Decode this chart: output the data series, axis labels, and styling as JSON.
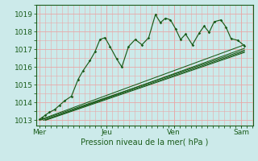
{
  "background_color": "#cceaea",
  "grid_color_minor": "#e8a8a8",
  "grid_color_major": "#e8a8a8",
  "line_color": "#1a5c1a",
  "text_color": "#1a5c1a",
  "xlabel_text": "Pression niveau de la mer( hPa )",
  "x_tick_labels": [
    "Mer",
    "Jeu",
    "Ven",
    "Sam"
  ],
  "x_tick_positions": [
    0.0,
    2.0,
    4.0,
    6.0
  ],
  "ylim": [
    1012.7,
    1019.5
  ],
  "xlim": [
    -0.1,
    6.35
  ],
  "yticks": [
    1013,
    1014,
    1015,
    1016,
    1017,
    1018,
    1019
  ],
  "smooth_lines": [
    {
      "x": [
        0.05,
        6.1
      ],
      "y": [
        1013.05,
        1017.25
      ]
    },
    {
      "x": [
        0.05,
        6.1
      ],
      "y": [
        1013.02,
        1016.95
      ]
    },
    {
      "x": [
        0.18,
        6.1
      ],
      "y": [
        1013.0,
        1016.82
      ]
    },
    {
      "x": [
        0.18,
        6.1
      ],
      "y": [
        1013.02,
        1017.05
      ]
    },
    {
      "x": [
        0.12,
        6.1
      ],
      "y": [
        1013.0,
        1016.88
      ]
    }
  ],
  "zigzag_x": [
    0.0,
    0.08,
    0.18,
    0.3,
    0.45,
    0.6,
    0.75,
    0.95,
    1.15,
    1.3,
    1.5,
    1.65,
    1.8,
    1.95,
    2.1,
    2.3,
    2.45,
    2.65,
    2.85,
    3.05,
    3.25,
    3.45,
    3.6,
    3.75,
    3.9,
    4.05,
    4.2,
    4.35,
    4.55,
    4.75,
    4.9,
    5.05,
    5.2,
    5.4,
    5.55,
    5.7,
    5.9,
    6.1
  ],
  "zigzag_y": [
    1013.05,
    1013.15,
    1013.3,
    1013.45,
    1013.6,
    1013.85,
    1014.1,
    1014.35,
    1015.3,
    1015.8,
    1016.35,
    1016.85,
    1017.55,
    1017.65,
    1017.15,
    1016.45,
    1016.0,
    1017.15,
    1017.55,
    1017.25,
    1017.65,
    1018.95,
    1018.5,
    1018.75,
    1018.65,
    1018.15,
    1017.55,
    1017.85,
    1017.25,
    1017.9,
    1018.3,
    1017.95,
    1018.55,
    1018.65,
    1018.25,
    1017.6,
    1017.5,
    1017.2
  ]
}
